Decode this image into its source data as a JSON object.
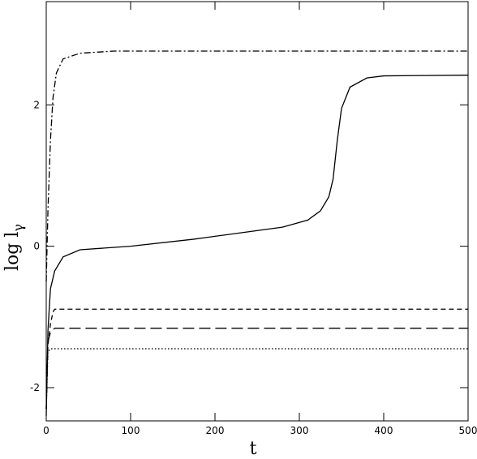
{
  "chart_data": {
    "type": "line",
    "x_label": "t",
    "y_label": "log l",
    "y_label_sub": "γ",
    "xlim": [
      0,
      500
    ],
    "ylim": [
      -2.47,
      3.46
    ],
    "xticks": [
      0,
      100,
      200,
      300,
      400,
      500
    ],
    "yticks": [
      -2,
      0,
      2
    ],
    "series": [
      {
        "color": "#000000",
        "dash": "none",
        "x": [
          0,
          2,
          5,
          10,
          20,
          40,
          100,
          175,
          280,
          310,
          325,
          335,
          340,
          345,
          350,
          360,
          380,
          400,
          500
        ],
        "values": [
          -2.4,
          -1.2,
          -0.6,
          -0.35,
          -0.15,
          -0.05,
          0.0,
          0.1,
          0.27,
          0.37,
          0.5,
          0.7,
          0.95,
          1.5,
          1.95,
          2.25,
          2.38,
          2.41,
          2.42
        ]
      },
      {
        "color": "#000000",
        "dash": "8 3 2 3",
        "x": [
          0,
          2,
          5,
          8,
          12,
          20,
          40,
          80,
          500
        ],
        "values": [
          -0.5,
          0.5,
          1.5,
          2.1,
          2.45,
          2.65,
          2.73,
          2.76,
          2.76
        ]
      },
      {
        "color": "#000000",
        "dash": "6 4",
        "x": [
          0,
          2,
          5,
          8,
          10,
          500
        ],
        "values": [
          -2.3,
          -1.4,
          -1.1,
          -0.93,
          -0.89,
          -0.89
        ]
      },
      {
        "color": "#000000",
        "dash": "14 6",
        "x": [
          0,
          2,
          5,
          10,
          500
        ],
        "values": [
          -2.3,
          -1.35,
          -1.22,
          -1.16,
          -1.16
        ]
      },
      {
        "color": "#000000",
        "dash": "1.5 2.5",
        "x": [
          0,
          2,
          5,
          500
        ],
        "values": [
          -2.3,
          -1.5,
          -1.45,
          -1.45
        ]
      }
    ]
  }
}
